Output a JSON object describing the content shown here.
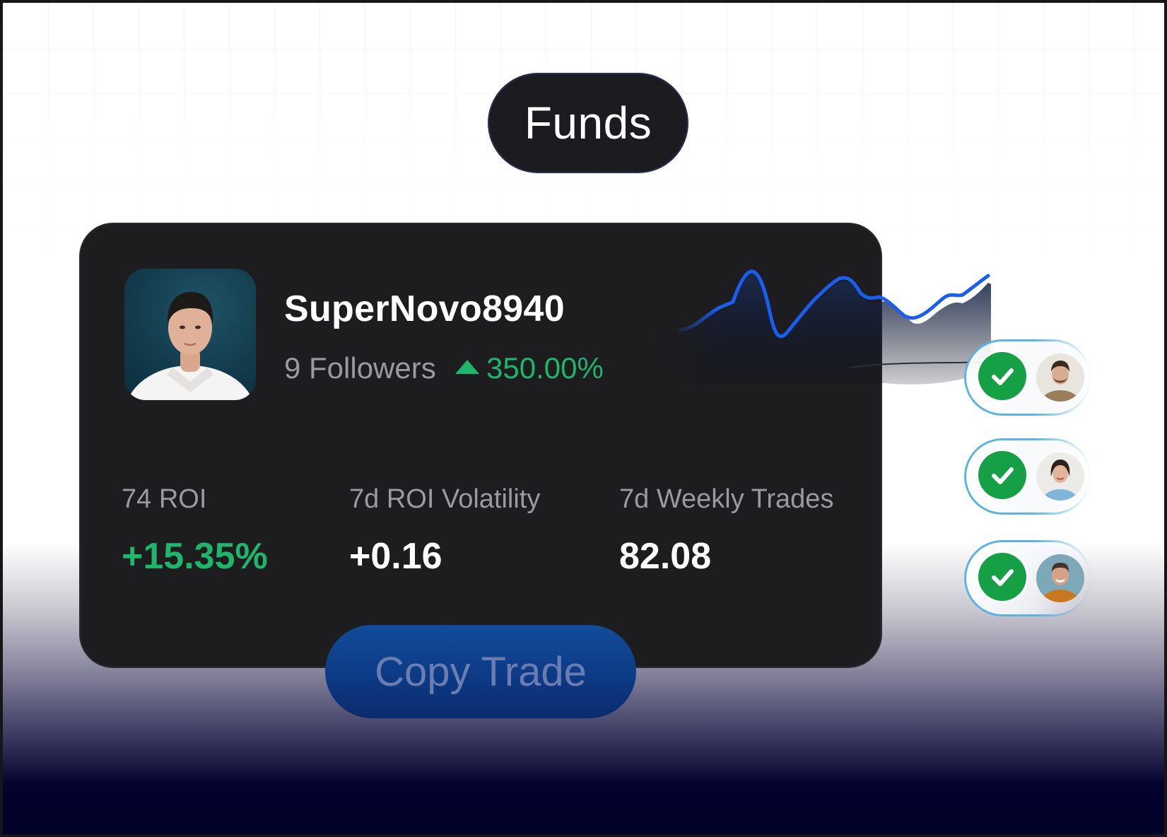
{
  "pill": {
    "label": "Funds"
  },
  "trader": {
    "username": "SuperNovo8940",
    "followers_text": "9 Followers",
    "growth_text": "350.00%"
  },
  "stats": [
    {
      "label": "74 ROI",
      "value": "+15.35%",
      "value_color": "#1fb56a"
    },
    {
      "label": "7d ROI Volatility",
      "value": "+0.16",
      "value_color": "#ffffff"
    },
    {
      "label": "7d Weekly Trades",
      "value": "82.08",
      "value_color": "#ffffff"
    }
  ],
  "action": {
    "copy_label": "Copy Trade"
  },
  "colors": {
    "accent_green": "#1fb56a",
    "chart_line": "#1a5ef0",
    "card_bg": "#1d1d1f",
    "button_bg": "#0d3a85",
    "check_green": "#15a046"
  },
  "icons": {
    "growth": "triangle-up-icon",
    "follower_status": "check-circle-icon"
  },
  "followers_list": [
    {
      "status": "copied"
    },
    {
      "status": "copied"
    },
    {
      "status": "copied"
    }
  ]
}
